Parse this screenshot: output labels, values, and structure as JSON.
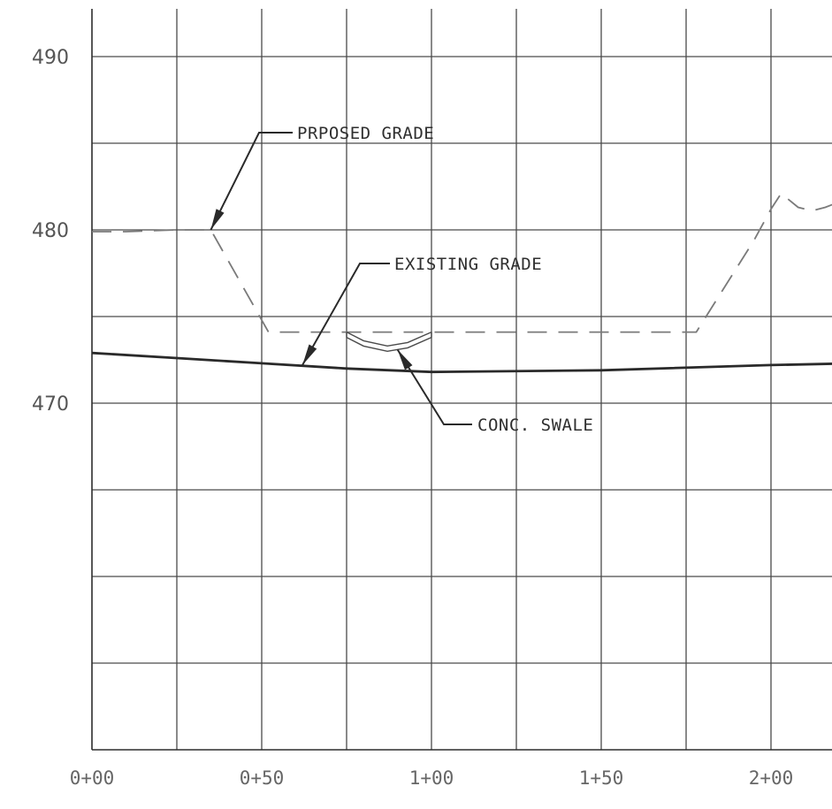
{
  "chart_data": {
    "type": "line",
    "title": "",
    "xlabel": "",
    "ylabel": "",
    "xlim": [
      0,
      225
    ],
    "ylim": [
      450,
      492
    ],
    "grid": true,
    "x_ticks": [
      {
        "value": 0,
        "label": "0+00"
      },
      {
        "value": 50,
        "label": "0+50"
      },
      {
        "value": 100,
        "label": "1+00"
      },
      {
        "value": 150,
        "label": "1+50"
      },
      {
        "value": 200,
        "label": "2+00"
      }
    ],
    "y_ticks": [
      {
        "value": 490,
        "label": "490"
      },
      {
        "value": 480,
        "label": "480"
      },
      {
        "value": 470,
        "label": "470"
      }
    ],
    "series": [
      {
        "x": [
          0,
          10,
          25,
          35,
          52,
          75,
          100,
          150,
          178,
          195,
          200,
          203,
          208,
          212,
          216,
          220,
          225
        ],
        "y": [
          479.9,
          479.9,
          480.0,
          480.0,
          474.1,
          474.1,
          474.1,
          474.1,
          474.1,
          479.4,
          481.2,
          482.1,
          481.3,
          481.1,
          481.3,
          481.6,
          482.3
        ]
      },
      {
        "x": [
          0,
          25,
          50,
          75,
          100,
          150,
          200,
          225
        ],
        "y": [
          472.9,
          472.6,
          472.3,
          472.0,
          471.8,
          471.9,
          472.2,
          472.3
        ]
      },
      {
        "x": [
          75,
          80,
          87,
          93,
          100
        ],
        "y": [
          474.1,
          473.6,
          473.3,
          473.5,
          474.1
        ]
      }
    ],
    "annotations": [
      {
        "text": "PRPOSED GRADE",
        "points_to_x": 35,
        "points_to_y": 480.0
      },
      {
        "text": "EXISTING GRADE",
        "points_to_x": 62,
        "points_to_y": 472.2
      },
      {
        "text": "CONC. SWALE",
        "points_to_x": 90,
        "points_to_y": 473.5
      }
    ]
  },
  "colors": {
    "proposed_line": "#2a2a2a",
    "existing_line": "#7a7a7a",
    "grid": "#4a4a4a"
  }
}
